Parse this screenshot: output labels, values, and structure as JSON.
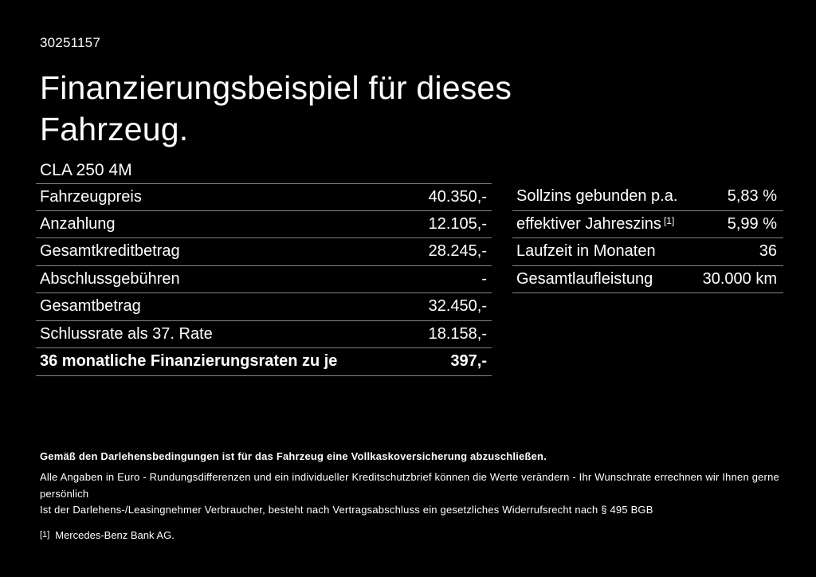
{
  "page": {
    "doc_id": "30251157",
    "title_line1": "Finanzierungsbeispiel für dieses",
    "title_line2": "Fahrzeug.",
    "vehicle_model": "CLA 250 4M"
  },
  "finance_table": {
    "rows": [
      {
        "label": "Fahrzeugpreis",
        "value": "40.350,-"
      },
      {
        "label": "Anzahlung",
        "value": "12.105,-"
      },
      {
        "label": "Gesamtkreditbetrag",
        "value": "28.245,-"
      },
      {
        "label": "Abschlussgebühren",
        "value": "-"
      },
      {
        "label": "Gesamtbetrag",
        "value": "32.450,-"
      },
      {
        "label": "Schlussrate als 37. Rate",
        "value": "18.158,-"
      },
      {
        "label": "36 monatliche Finanzierungsraten zu je",
        "value": "397,-"
      }
    ]
  },
  "conditions_table": {
    "rows": [
      {
        "label": "Sollzins gebunden p.a.",
        "sup": "",
        "value": "5,83 %"
      },
      {
        "label": "effektiver Jahreszins",
        "sup": "[1]",
        "value": "5,99 %"
      },
      {
        "label": "Laufzeit in Monaten",
        "sup": "",
        "value": "36"
      },
      {
        "label": "Gesamtlaufleistung",
        "sup": "",
        "value": "30.000 km"
      }
    ]
  },
  "footer": {
    "bold_note": "Gemäß den Darlehensbedingungen ist für das Fahrzeug eine Vollkaskoversicherung abzuschließen.",
    "note_line1": "Alle Angaben in Euro - Rundungsdifferenzen und ein individueller Kreditschutzbrief können die Werte verändern - Ihr Wunschrate errechnen wir Ihnen gerne persönlich",
    "note_line2": "Ist der Darlehens-/Leasingnehmer Verbraucher, besteht nach Vertragsabschluss ein gesetzliches Widerrufsrecht nach § 495 BGB",
    "footnote_marker": "[1]",
    "footnote_text": "Mercedes-Benz Bank AG."
  },
  "colors": {
    "background": "#000000",
    "text": "#ffffff",
    "divider": "#848484"
  }
}
